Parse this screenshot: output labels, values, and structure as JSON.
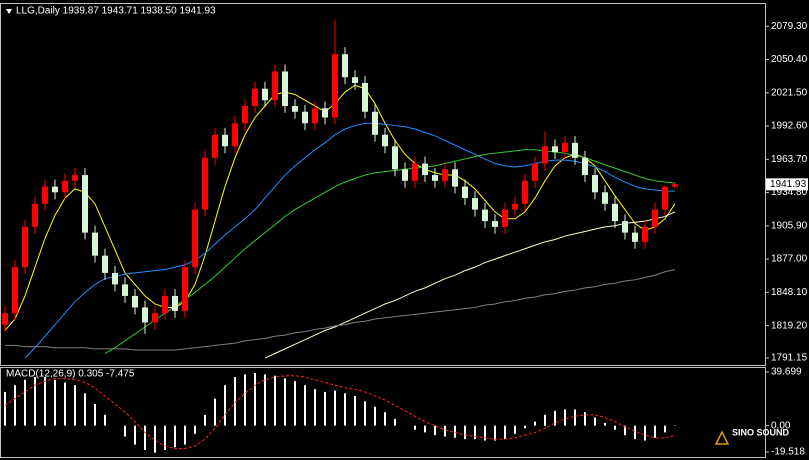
{
  "chart_data": [
    {
      "type": "candlestick",
      "title": "LLG,Daily 1939.87 1943.71 1938.50 1941.93",
      "up_color": "#ff0000",
      "down_color": "#d8f5d8",
      "open": [
        1820,
        1830,
        1870,
        1905,
        1925,
        1940,
        1935,
        1945,
        1950,
        1900,
        1880,
        1865,
        1855,
        1845,
        1835,
        1822,
        1830,
        1845,
        1832,
        1870,
        1920,
        1965,
        1985,
        1975,
        1995,
        2010,
        2025,
        2015,
        2040,
        2010,
        2005,
        1995,
        2008,
        2000,
        2055,
        2035,
        2030,
        2005,
        1985,
        1975,
        1955,
        1945,
        1960,
        1950,
        1945,
        1955,
        1940,
        1930,
        1920,
        1910,
        1905,
        1920,
        1925,
        1945,
        1960,
        1975,
        1970,
        1978,
        1965,
        1950,
        1935,
        1925,
        1910,
        1900,
        1892,
        1905,
        1920,
        1939.87
      ],
      "high": [
        1836,
        1876,
        1911,
        1931,
        1946,
        1946,
        1951,
        1956,
        1956,
        1906,
        1886,
        1871,
        1861,
        1851,
        1841,
        1836,
        1851,
        1851,
        1876,
        1926,
        1971,
        1991,
        1991,
        2001,
        2016,
        2031,
        2031,
        2046,
        2046,
        2016,
        2011,
        2014,
        2014,
        2085,
        2061,
        2041,
        2036,
        2011,
        1991,
        1981,
        1961,
        1966,
        1966,
        1956,
        1961,
        1961,
        1946,
        1936,
        1926,
        1916,
        1926,
        1931,
        1951,
        1966,
        1988,
        1981,
        1984,
        1984,
        1971,
        1956,
        1941,
        1931,
        1916,
        1906,
        1911,
        1926,
        1941,
        1943.71
      ],
      "low": [
        1814,
        1824,
        1864,
        1899,
        1919,
        1929,
        1929,
        1939,
        1894,
        1874,
        1859,
        1849,
        1839,
        1829,
        1812,
        1816,
        1824,
        1826,
        1826,
        1864,
        1914,
        1959,
        1969,
        1969,
        1989,
        2004,
        2009,
        2009,
        2004,
        1999,
        1989,
        1989,
        1994,
        1994,
        2029,
        2024,
        1999,
        1979,
        1969,
        1949,
        1939,
        1939,
        1944,
        1939,
        1939,
        1934,
        1924,
        1914,
        1904,
        1899,
        1899,
        1914,
        1919,
        1939,
        1954,
        1964,
        1964,
        1959,
        1944,
        1929,
        1919,
        1904,
        1894,
        1886,
        1886,
        1899,
        1914,
        1938.5
      ],
      "close": [
        1830,
        1870,
        1905,
        1925,
        1940,
        1935,
        1945,
        1950,
        1900,
        1880,
        1865,
        1855,
        1845,
        1835,
        1822,
        1830,
        1845,
        1832,
        1870,
        1920,
        1965,
        1985,
        1975,
        1995,
        2010,
        2025,
        2015,
        2040,
        2010,
        2005,
        1995,
        2008,
        2000,
        2055,
        2035,
        2030,
        2005,
        1985,
        1975,
        1955,
        1945,
        1960,
        1950,
        1945,
        1955,
        1940,
        1930,
        1920,
        1910,
        1905,
        1920,
        1925,
        1945,
        1960,
        1975,
        1970,
        1978,
        1965,
        1950,
        1935,
        1925,
        1910,
        1900,
        1892,
        1905,
        1920,
        1939.87,
        1941.93
      ],
      "series": [
        {
          "color": "#ffff00",
          "values": [
            1815,
            1825,
            1845,
            1870,
            1895,
            1915,
            1930,
            1938,
            1935,
            1925,
            1905,
            1885,
            1865,
            1855,
            1845,
            1838,
            1835,
            1835,
            1840,
            1855,
            1880,
            1910,
            1940,
            1965,
            1985,
            2000,
            2010,
            2020,
            2022,
            2020,
            2015,
            2010,
            2005,
            2012,
            2022,
            2028,
            2025,
            2012,
            1995,
            1980,
            1968,
            1960,
            1955,
            1952,
            1950,
            1950,
            1945,
            1938,
            1928,
            1918,
            1912,
            1912,
            1918,
            1930,
            1945,
            1958,
            1965,
            1968,
            1965,
            1958,
            1945,
            1932,
            1920,
            1908,
            1902,
            1905,
            1912,
            1925
          ]
        },
        {
          "color": "#1e90ff",
          "values": [
            null,
            null,
            1791,
            1800,
            1810,
            1820,
            1830,
            1840,
            1848,
            1855,
            1860,
            1862,
            1864,
            1865,
            1866,
            1867,
            1868,
            1870,
            1872,
            1876,
            1882,
            1890,
            1898,
            1905,
            1912,
            1920,
            1930,
            1940,
            1950,
            1958,
            1965,
            1972,
            1978,
            1985,
            1990,
            1993,
            1995,
            1995,
            1994,
            1993,
            1992,
            1990,
            1987,
            1984,
            1980,
            1976,
            1972,
            1968,
            1964,
            1960,
            1958,
            1957,
            1958,
            1960,
            1962,
            1963,
            1963,
            1962,
            1960,
            1957,
            1953,
            1948,
            1944,
            1940,
            1938,
            1937,
            1936,
            1936
          ]
        },
        {
          "color": "#32cd32",
          "values": [
            null,
            null,
            null,
            null,
            null,
            null,
            null,
            null,
            null,
            null,
            1795,
            1800,
            1806,
            1812,
            1818,
            1824,
            1830,
            1836,
            1842,
            1848,
            1855,
            1862,
            1870,
            1878,
            1886,
            1893,
            1900,
            1907,
            1914,
            1920,
            1925,
            1930,
            1935,
            1940,
            1944,
            1947,
            1950,
            1952,
            1953,
            1954,
            1955,
            1956,
            1957,
            1958,
            1960,
            1962,
            1964,
            1966,
            1968,
            1969,
            1970,
            1971,
            1972,
            1972,
            1971,
            1970,
            1969,
            1967,
            1965,
            1962,
            1959,
            1956,
            1953,
            1950,
            1947,
            1945,
            1944,
            1943
          ]
        },
        {
          "color": "#fffacd",
          "values": [
            null,
            null,
            null,
            null,
            null,
            null,
            null,
            null,
            null,
            null,
            null,
            null,
            null,
            null,
            null,
            null,
            null,
            null,
            null,
            null,
            null,
            null,
            null,
            null,
            null,
            null,
            1791,
            1795,
            1799,
            1803,
            1807,
            1811,
            1815,
            1818,
            1822,
            1826,
            1830,
            1834,
            1838,
            1841,
            1845,
            1849,
            1852,
            1856,
            1860,
            1863,
            1867,
            1870,
            1874,
            1877,
            1880,
            1883,
            1886,
            1889,
            1892,
            1894,
            1897,
            1899,
            1901,
            1903,
            1905,
            1906,
            1908,
            1909,
            1910,
            1912,
            1914,
            1918
          ]
        },
        {
          "color": "#808080",
          "values": [
            1802,
            1802,
            1801,
            1801,
            1801,
            1800,
            1800,
            1800,
            1800,
            1799,
            1799,
            1799,
            1799,
            1798,
            1798,
            1798,
            1798,
            1798,
            1799,
            1800,
            1801,
            1802,
            1803,
            1804,
            1806,
            1807,
            1808,
            1810,
            1811,
            1813,
            1814,
            1816,
            1817,
            1819,
            1820,
            1822,
            1823,
            1825,
            1826,
            1827,
            1828,
            1829,
            1830,
            1831,
            1832,
            1833,
            1834,
            1835,
            1837,
            1838,
            1840,
            1841,
            1843,
            1844,
            1846,
            1847,
            1849,
            1850,
            1852,
            1853,
            1855,
            1856,
            1858,
            1859,
            1861,
            1863,
            1866,
            1868
          ]
        }
      ],
      "ylim": [
        1785,
        2098.6
      ],
      "yticks": [
        {
          "value": 2079.3,
          "label": "2079.30"
        },
        {
          "value": 2050.4,
          "label": "2050.40"
        },
        {
          "value": 2021.5,
          "label": "2021.50"
        },
        {
          "value": 1992.6,
          "label": "1992.60"
        },
        {
          "value": 1963.7,
          "label": "1963.70"
        },
        {
          "value": 1934.8,
          "label": "1934.80"
        },
        {
          "value": 1905.9,
          "label": "1905.90"
        },
        {
          "value": 1877,
          "label": "1877.00"
        },
        {
          "value": 1848.1,
          "label": "1848.10"
        },
        {
          "value": 1819.2,
          "label": "1819.20"
        },
        {
          "value": 1791.15,
          "label": "1791.15"
        }
      ],
      "last_price": {
        "value": 1941.93,
        "label": "1941.93"
      }
    },
    {
      "type": "macd",
      "title": "MACD(12,26,9) 0.305 -7.475",
      "series": [
        {
          "color": "#ffffff",
          "values": [
            25,
            30,
            34,
            36,
            36,
            34,
            32,
            30,
            24,
            16,
            8,
            0,
            -8,
            -14,
            -18,
            -20,
            -18,
            -16,
            -14,
            -6,
            8,
            20,
            30,
            36,
            38,
            39,
            38,
            37,
            35,
            33,
            30,
            27,
            25,
            26,
            24,
            22,
            18,
            14,
            10,
            5,
            0,
            -3,
            -5,
            -7,
            -8,
            -9,
            -10,
            -10,
            -11,
            -11,
            -10,
            -6,
            -2,
            3,
            8,
            11,
            12,
            12,
            10,
            6,
            2,
            -3,
            -7,
            -10,
            -11,
            -9,
            -5,
            0.305
          ]
        },
        {
          "color": "#ff2020",
          "values": [
            15,
            20,
            25,
            30,
            33,
            35,
            35,
            34,
            32,
            28,
            22,
            16,
            10,
            3,
            -5,
            -11,
            -15,
            -17,
            -17,
            -15,
            -10,
            -2,
            8,
            17,
            24,
            30,
            34,
            36,
            37,
            37,
            36,
            34,
            32,
            30,
            28,
            27,
            25,
            22,
            19,
            15,
            11,
            7,
            3,
            0,
            -3,
            -5,
            -7,
            -8,
            -9,
            -10,
            -10,
            -9,
            -7,
            -5,
            -2,
            2,
            5,
            7,
            8,
            8,
            6,
            3,
            -1,
            -4,
            -7,
            -9,
            -9,
            -7.475
          ]
        }
      ],
      "ylim": [
        -23.2,
        42.7
      ],
      "yticks": [
        39.699,
        {
          "value": 0,
          "label": "0.00"
        },
        -19.518
      ],
      "watermark": "SINO SOUND"
    }
  ]
}
